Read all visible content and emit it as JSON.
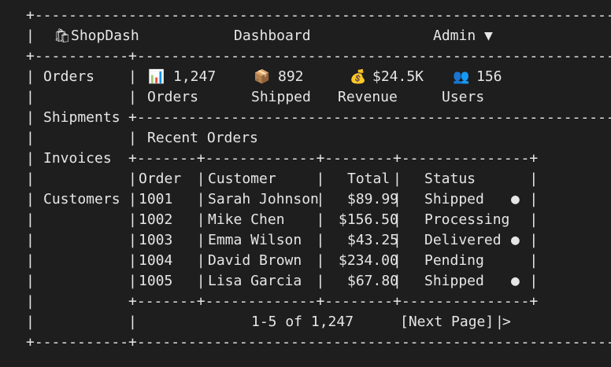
{
  "art": {
    "border_top": "+---------------------------------------------------------------------+",
    "border_nav": "+-----------+---------------------------------------------------------+",
    "row_orders": "|           |                                                         |",
    "row_stats_labels": "|           |                                                         |",
    "border_shipments": "|           +---------------------------------------------------------+",
    "row_recent": "|           |                                                         |",
    "border_invoices": "|           +-------+-------------+--------+---------------+",
    "row_head": "|           |       |             |        |               |",
    "row_1": "|           |       |             |        |               |",
    "row_2": "|           |       |             |        |               |",
    "row_3": "|           |       |             |        |               |",
    "row_4": "|           |       |             |        |               |",
    "row_5": "|           |       |             |        |               |",
    "row_blank": "|           |                                                         |",
    "border_foot": "|           +-------+-------------+--------+---------------+",
    "row_pag": "|           |                                          |",
    "border_bottom": "+-----------+---------------------------------------------------------+"
  },
  "header": {
    "logo_icon": "shopping-bag-icon",
    "app_name": "ShopDash",
    "title": "Dashboard",
    "user_menu": "Admin ▼"
  },
  "sidebar": {
    "items": [
      {
        "label": "Orders"
      },
      {
        "label": "Shipments"
      },
      {
        "label": "Invoices"
      },
      {
        "label": "Customers"
      }
    ]
  },
  "stats": [
    {
      "icon": "bar-chart-icon",
      "glyph": "📊",
      "value": "1,247",
      "label": "Orders"
    },
    {
      "icon": "package-icon",
      "glyph": "📦",
      "value": "892",
      "label": "Shipped"
    },
    {
      "icon": "money-bag-icon",
      "glyph": "💰",
      "value": "$24.5K",
      "label": "Revenue"
    },
    {
      "icon": "users-icon",
      "glyph": "👥",
      "value": "156",
      "label": "Users"
    }
  ],
  "recent_orders": {
    "title": "Recent Orders",
    "columns": [
      "Order",
      "Customer",
      "Total",
      "Status"
    ],
    "rows": [
      {
        "order": "1001",
        "customer": "Sarah Johnson",
        "total": "$89.99",
        "status": "Shipped",
        "dot": "●"
      },
      {
        "order": "1002",
        "customer": "Mike Chen",
        "total": "$156.50",
        "status": "Processing",
        "dot": ""
      },
      {
        "order": "1003",
        "customer": "Emma Wilson",
        "total": "$43.25",
        "status": "Delivered",
        "dot": "●"
      },
      {
        "order": "1004",
        "customer": "David Brown",
        "total": "$234.00",
        "status": "Pending",
        "dot": ""
      },
      {
        "order": "1005",
        "customer": "Lisa Garcia",
        "total": "$67.80",
        "status": "Shipped",
        "dot": "●"
      }
    ]
  },
  "pagination": {
    "range": "1-5 of 1,247",
    "next_label": "[Next Page] >"
  }
}
